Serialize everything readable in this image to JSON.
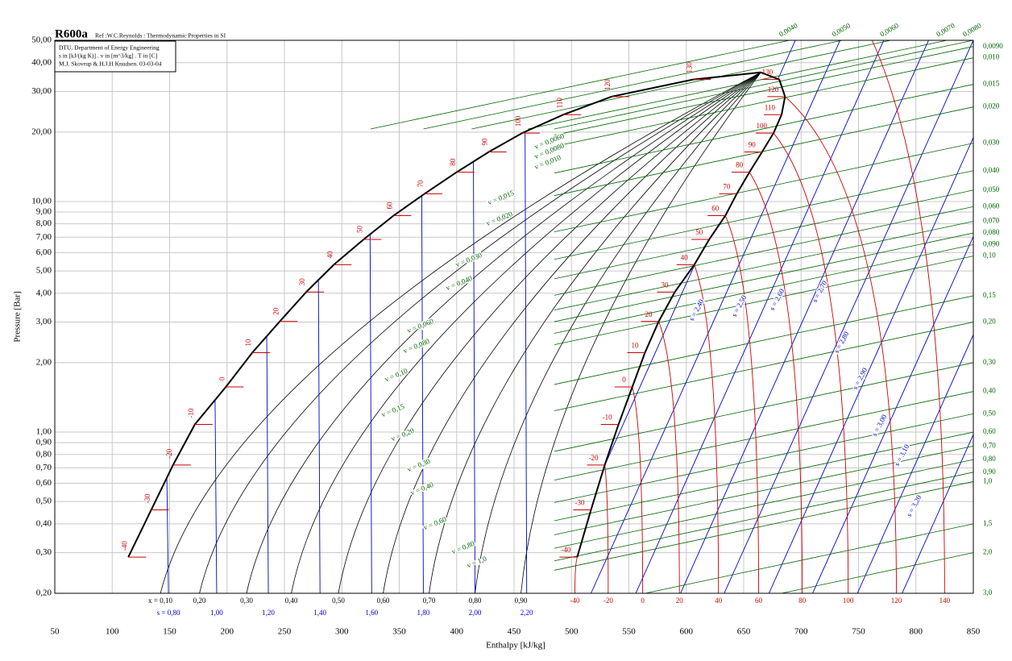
{
  "chart_data": {
    "type": "line",
    "title": "R600a",
    "reference": "Ref :W.C.Reynolds : Thermodynamic Properties in SI",
    "info": [
      "DTU, Department of Energy Engineering",
      "s in [kJ/(kg K)] . v in [m^3/kg] . T in [C]",
      "M.J. Skovrup & H.J.H Knudsen. 03-03-04"
    ],
    "x_label": "Enthalpy [kJ/kg]",
    "y_label": "Pressure [Bar]",
    "y_scale": "log",
    "grid": true,
    "xlim": [
      50,
      850
    ],
    "xticks": [
      50,
      100,
      150,
      200,
      250,
      300,
      350,
      400,
      450,
      500,
      550,
      600,
      650,
      700,
      750,
      800,
      850
    ],
    "ylim": [
      0.2,
      50
    ],
    "yticks": [
      {
        "value": 0.2,
        "label": "0,20"
      },
      {
        "value": 0.3,
        "label": "0,30"
      },
      {
        "value": 0.4,
        "label": "0,40"
      },
      {
        "value": 0.5,
        "label": "0,50"
      },
      {
        "value": 0.6,
        "label": "0,60"
      },
      {
        "value": 0.7,
        "label": "0,70"
      },
      {
        "value": 0.8,
        "label": "0,80"
      },
      {
        "value": 0.9,
        "label": "0,90"
      },
      {
        "value": 1,
        "label": "1,00"
      },
      {
        "value": 2,
        "label": "2,00"
      },
      {
        "value": 3,
        "label": "3,00"
      },
      {
        "value": 4,
        "label": "4,00"
      },
      {
        "value": 5,
        "label": "5,00"
      },
      {
        "value": 6,
        "label": "6,00"
      },
      {
        "value": 7,
        "label": "7,00"
      },
      {
        "value": 8,
        "label": "8,00"
      },
      {
        "value": 9,
        "label": "9,00"
      },
      {
        "value": 10,
        "label": "10,00"
      },
      {
        "value": 20,
        "label": "20,00"
      },
      {
        "value": 30,
        "label": "30,00"
      },
      {
        "value": 40,
        "label": "40,00"
      },
      {
        "value": 50,
        "label": "50,00"
      }
    ],
    "temperatures": [
      -40,
      -30,
      -20,
      -10,
      0,
      10,
      20,
      30,
      40,
      50,
      60,
      70,
      80,
      90,
      100,
      110,
      120,
      130
    ],
    "saturation_pressure": [
      0.287,
      0.46,
      0.72,
      1.08,
      1.57,
      2.21,
      3.02,
      4.05,
      5.32,
      6.85,
      8.68,
      10.8,
      13.4,
      16.4,
      19.8,
      23.8,
      28.5,
      33.8
    ],
    "liquid_enthalpy": [
      114,
      134,
      153,
      172,
      199,
      222,
      246,
      269,
      293,
      319,
      345,
      372,
      400,
      428,
      457,
      493,
      535,
      606
    ],
    "vapor_enthalpy": [
      505,
      517,
      529,
      541,
      553,
      564,
      576,
      590,
      607,
      620,
      634,
      644,
      655,
      666,
      676,
      683,
      686,
      681
    ],
    "critical_point": {
      "h": 665,
      "p": 36.3
    },
    "quality_lines": {
      "x": [
        {
          "value": 0.1,
          "label": "x = 0,10"
        },
        {
          "value": 0.2,
          "label": "0,20"
        },
        {
          "value": 0.3,
          "label": "0,30"
        },
        {
          "value": 0.4,
          "label": "0,40"
        },
        {
          "value": 0.5,
          "label": "0,50"
        },
        {
          "value": 0.6,
          "label": "0,60"
        },
        {
          "value": 0.7,
          "label": "0,70"
        },
        {
          "value": 0.8,
          "label": "0,80"
        },
        {
          "value": 0.9,
          "label": "0,90"
        }
      ],
      "h_at_pmin": [
        142,
        176,
        217,
        256,
        297,
        336,
        376,
        416,
        456
      ]
    },
    "isentropes_liquid": {
      "s": [
        {
          "value": 0.8,
          "label": "s = 0,80"
        },
        {
          "value": 1.0,
          "label": "1,00"
        },
        {
          "value": 1.2,
          "label": "1,20"
        },
        {
          "value": 1.4,
          "label": "1,40"
        },
        {
          "value": 1.6,
          "label": "1,60"
        },
        {
          "value": 1.8,
          "label": "1,80"
        },
        {
          "value": 2.0,
          "label": "2,00"
        },
        {
          "value": 2.2,
          "label": "2,20"
        }
      ],
      "h_at_pmin": [
        149,
        191,
        236,
        281,
        326,
        371,
        416,
        461
      ]
    },
    "isentropes_vapor": {
      "s": [
        {
          "value": 2.4,
          "label": "s = 2,40"
        },
        {
          "value": 2.5,
          "label": "s = 2,50"
        },
        {
          "value": 2.6,
          "label": "s = 2,60"
        },
        {
          "value": 2.7,
          "label": "s = 2,70"
        },
        {
          "value": 2.8,
          "label": "s = 2,80"
        },
        {
          "value": 2.9,
          "label": "s = 2,90"
        },
        {
          "value": 3.0,
          "label": "s = 3,00"
        },
        {
          "value": 3.1,
          "label": "s = 3,10"
        },
        {
          "value": 3.2,
          "label": "s = 3,20"
        }
      ],
      "h_at_pmin": [
        479,
        517,
        556,
        595,
        633,
        672,
        710,
        749,
        788
      ],
      "h_at_pmax": [
        695,
        734,
        772,
        811,
        850,
        888,
        927,
        965,
        1004
      ]
    },
    "isotherms": {
      "t": [
        -40,
        -20,
        0,
        20,
        40,
        60,
        80,
        100,
        120,
        140
      ],
      "h_at_pmin": [
        503,
        532,
        562,
        594,
        628,
        663,
        701,
        741,
        783,
        825
      ]
    },
    "isochores_right": {
      "v": [
        {
          "value": 0.009,
          "label": "0,0090"
        },
        {
          "value": 0.01,
          "label": "0,010"
        },
        {
          "value": 0.015,
          "label": "0,015"
        },
        {
          "value": 0.02,
          "label": "0,020"
        },
        {
          "value": 0.03,
          "label": "0,030"
        },
        {
          "value": 0.04,
          "label": "0,040"
        },
        {
          "value": 0.05,
          "label": "0,050"
        },
        {
          "value": 0.06,
          "label": "0,060"
        },
        {
          "value": 0.07,
          "label": "0,070"
        },
        {
          "value": 0.08,
          "label": "0,080"
        },
        {
          "value": 0.09,
          "label": "0,090"
        },
        {
          "value": 0.1,
          "label": "0,10"
        },
        {
          "value": 0.15,
          "label": "0,15"
        },
        {
          "value": 0.2,
          "label": "0,20"
        },
        {
          "value": 0.3,
          "label": "0,30"
        },
        {
          "value": 0.4,
          "label": "0,40"
        },
        {
          "value": 0.5,
          "label": "0,50"
        },
        {
          "value": 0.6,
          "label": "0,60"
        },
        {
          "value": 0.7,
          "label": "0,70"
        },
        {
          "value": 0.8,
          "label": "0,80"
        },
        {
          "value": 0.9,
          "label": "0,90"
        },
        {
          "value": 1,
          "label": "1,0"
        },
        {
          "value": 1.5,
          "label": "1,5"
        },
        {
          "value": 2,
          "label": "2,0"
        },
        {
          "value": 3,
          "label": "3,0"
        }
      ],
      "p_at_hmax": [
        47.0,
        42.0,
        32.2,
        25.7,
        17.9,
        13.6,
        11.2,
        9.5,
        8.2,
        7.3,
        6.5,
        5.8,
        3.9,
        3.0,
        2.0,
        1.5,
        1.2,
        1.0,
        0.87,
        0.76,
        0.67,
        0.61,
        0.4,
        0.3,
        0.2
      ]
    },
    "isochores_top": {
      "v": [
        {
          "value": 0.004,
          "label": "0,0040"
        },
        {
          "value": 0.005,
          "label": "0,0050"
        },
        {
          "value": 0.006,
          "label": "0,0060"
        },
        {
          "value": 0.007,
          "label": "0,0070"
        },
        {
          "value": 0.008,
          "label": "0,0080"
        }
      ],
      "h_at_pmax": [
        690,
        736,
        778,
        827,
        850
      ]
    },
    "dome_v_labels": [
      "v = 0,0060",
      "v = 0,0080",
      "v = 0,010",
      "v = 0,015",
      "v = 0,020",
      "v = 0,030",
      "v = 0,040",
      "v = 0,060",
      "v = 0,080",
      "v = 0,10",
      "v = 0,15",
      "v = 0,20",
      "v = 0,30",
      "v = 0,40",
      "v = 0,60",
      "v = 0,80",
      "v = 1,0"
    ],
    "colors": {
      "saturation": "#000000",
      "quality": "#000000",
      "isentrope": "#0000cc",
      "isotherm": "#cc0000",
      "isochore": "#006600",
      "grid": "#c8c8c8"
    }
  }
}
